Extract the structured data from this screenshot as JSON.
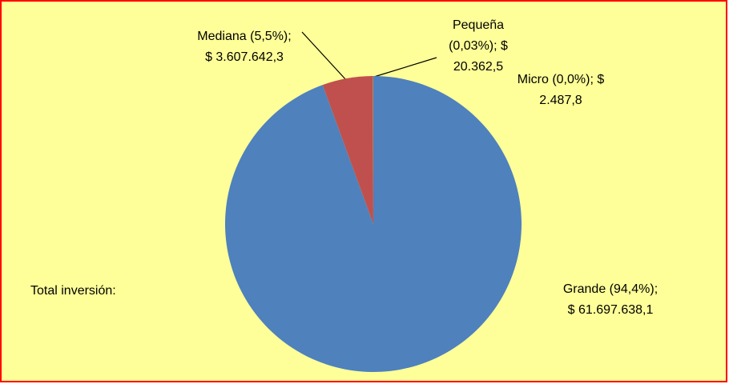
{
  "chart_data": {
    "type": "pie",
    "annotation": "Total inversión:",
    "values": [
      61697638.1,
      3607642.3,
      20362.5,
      2487.8
    ],
    "value_labels": [
      [
        "Grande (94,4%);",
        "$ 61.697.638,1"
      ],
      [
        "Mediana (5,5%);",
        "$ 3.607.642,3"
      ],
      [
        "Pequeña",
        "(0,03%); $",
        "20.362,5"
      ],
      [
        "Micro (0,0%); $",
        "2.487,8"
      ]
    ],
    "colors": [
      "#4f81bd",
      "#c0504d",
      "#9bbb59",
      "#8064a2"
    ]
  }
}
